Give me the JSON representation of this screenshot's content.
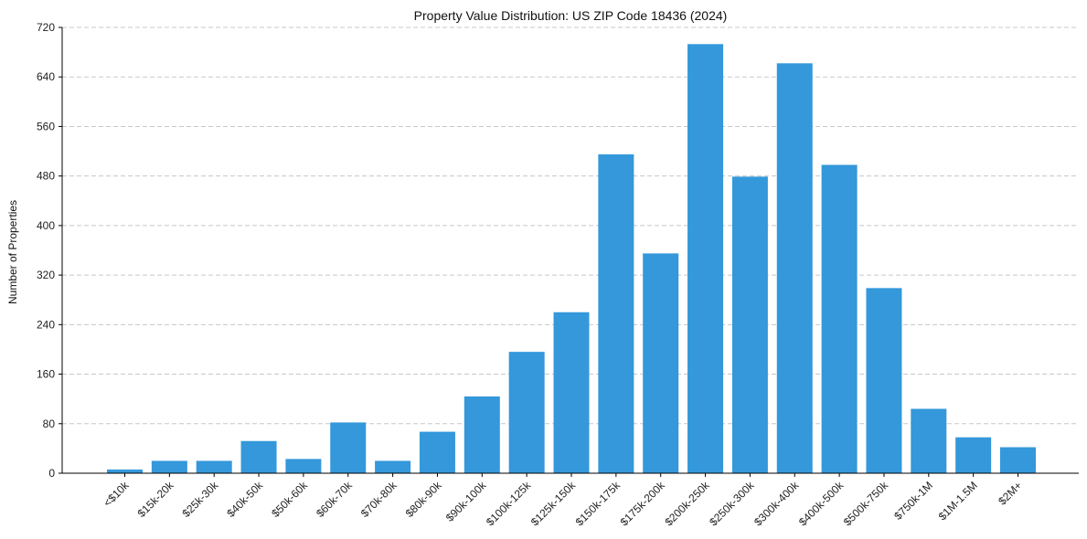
{
  "chart_data": {
    "type": "bar",
    "title": "Property Value Distribution: US ZIP Code 18436 (2024)",
    "xlabel": "",
    "ylabel": "Number of Properties",
    "ylim": [
      0,
      720
    ],
    "yticks": [
      0,
      80,
      160,
      240,
      320,
      400,
      480,
      560,
      640,
      720
    ],
    "grid": "y-dashed",
    "colors": {
      "bar": "#3498db"
    },
    "categories": [
      "<$10k",
      "$15k-20k",
      "$25k-30k",
      "$40k-50k",
      "$50k-60k",
      "$60k-70k",
      "$70k-80k",
      "$80k-90k",
      "$90k-100k",
      "$100k-125k",
      "$125k-150k",
      "$150k-175k",
      "$175k-200k",
      "$200k-250k",
      "$250k-300k",
      "$300k-400k",
      "$400k-500k",
      "$500k-750k",
      "$750k-1M",
      "$1M-1.5M",
      "$2M+"
    ],
    "values": [
      6,
      20,
      20,
      52,
      23,
      82,
      20,
      67,
      124,
      196,
      260,
      515,
      355,
      693,
      479,
      662,
      498,
      299,
      104,
      58,
      42
    ]
  }
}
